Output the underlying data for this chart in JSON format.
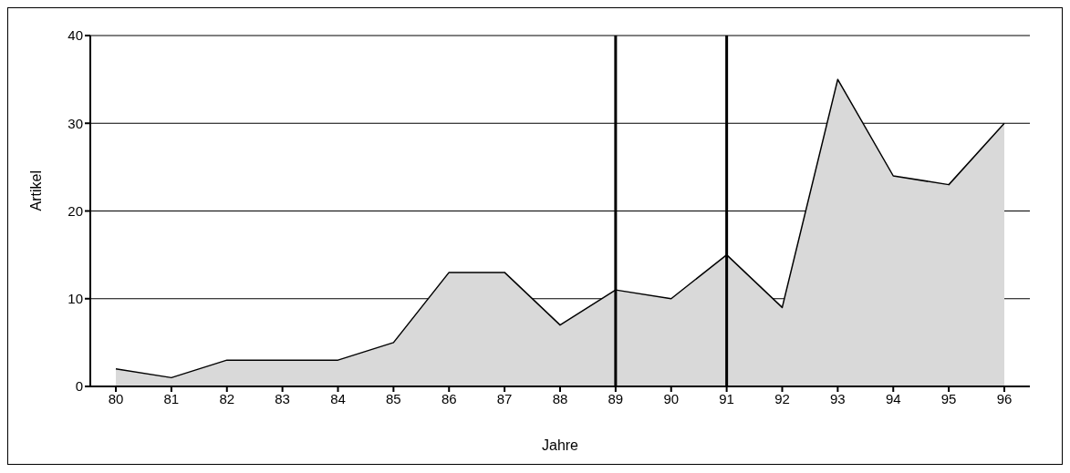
{
  "chart_data": {
    "type": "area",
    "xlabel": "Jahre",
    "ylabel": "Artikel",
    "categories": [
      "80",
      "81",
      "82",
      "83",
      "84",
      "85",
      "86",
      "87",
      "88",
      "89",
      "90",
      "91",
      "92",
      "93",
      "94",
      "95",
      "96"
    ],
    "series": [
      {
        "color": "#d9d9d9",
        "values": [
          2,
          1,
          3,
          3,
          3,
          5,
          13,
          13,
          7,
          11,
          10,
          15,
          9,
          35,
          24,
          23,
          30
        ]
      }
    ],
    "ylim": [
      0,
      40
    ],
    "yticks": [
      0,
      10,
      20,
      30,
      40
    ],
    "grid": "y",
    "ref_lines": [
      {
        "axis": "x",
        "value": "89",
        "color": "#000000"
      },
      {
        "axis": "x",
        "value": "91",
        "color": "#000000"
      }
    ]
  }
}
